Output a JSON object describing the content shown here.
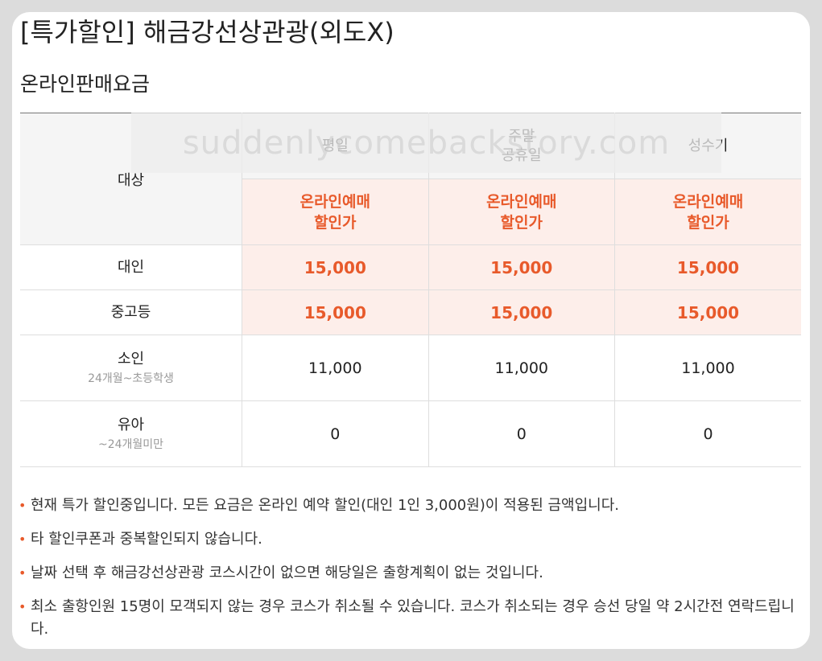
{
  "page": {
    "title": "[특가할인] 해금강선상관광(외도X)",
    "subtitle": "온라인판매요금",
    "watermark": "suddenlycomebackstory.com"
  },
  "fare_table": {
    "target_header": "대상",
    "day_headers": [
      "평일",
      "주말\n공휴일",
      "성수기"
    ],
    "online_header": "온라인예매\n할인가",
    "rows": [
      {
        "category": "대인",
        "sub": "",
        "prices": [
          "15,000",
          "15,000",
          "15,000"
        ],
        "highlight": true
      },
      {
        "category": "중고등",
        "sub": "",
        "prices": [
          "15,000",
          "15,000",
          "15,000"
        ],
        "highlight": true
      },
      {
        "category": "소인",
        "sub": "24개월~초등학생",
        "prices": [
          "11,000",
          "11,000",
          "11,000"
        ],
        "highlight": false
      },
      {
        "category": "유아",
        "sub": "~24개월미만",
        "prices": [
          "0",
          "0",
          "0"
        ],
        "highlight": false
      }
    ]
  },
  "notes": [
    "현재 특가 할인중입니다. 모든 요금은 온라인 예약 할인(대인 1인 3,000원)이 적용된 금액입니다.",
    "타 할인쿠폰과 중복할인되지 않습니다.",
    "날짜 선택 후 해금강선상관광 코스시간이 없으면 해당일은 출항계획이 없는 것입니다.",
    "최소 출항인원 15명이 모객되지 않는 경우 코스가 취소될 수 있습니다. 코스가 취소되는 경우 승선 당일 약 2시간전 연락드립니다."
  ],
  "colors": {
    "accent": "#e85a2b",
    "highlight_bg": "#fdeeea",
    "header_bg": "#f5f5f5"
  },
  "icons": {
    "bullet": "dot-icon"
  }
}
